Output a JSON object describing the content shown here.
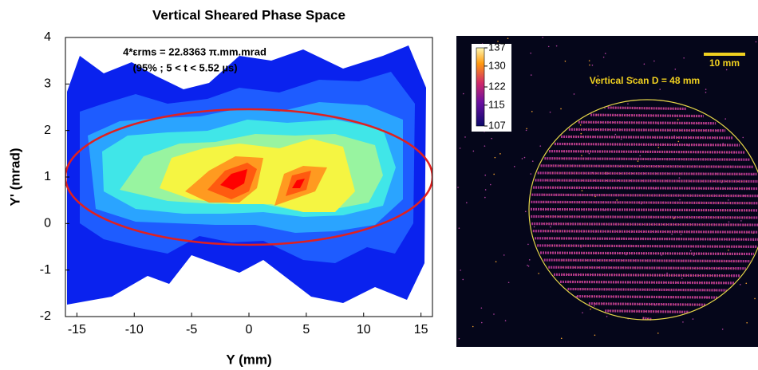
{
  "chart_data": [
    {
      "type": "contour",
      "title": "Vertical Sheared Phase Space",
      "x_label": "Y (mm)",
      "y_label": "Y' (mrad)",
      "annotations": [
        "4*εrms = 22.8363 π.mm.mrad",
        "(95% ; 5 < t < 5.52 µs)"
      ],
      "xlim": [
        -16,
        16
      ],
      "ylim": [
        -2,
        4
      ],
      "xticks": [
        -15,
        -10,
        -5,
        0,
        5,
        10,
        15
      ],
      "yticks": [
        -2,
        -1,
        0,
        1,
        2,
        3,
        4
      ]
    },
    {
      "type": "image",
      "title": "Vertical Scan D = 48 mm",
      "scale_bar": "10 mm",
      "clim": [
        107,
        137
      ],
      "cticks": [
        107,
        115,
        122,
        130,
        137
      ]
    }
  ]
}
